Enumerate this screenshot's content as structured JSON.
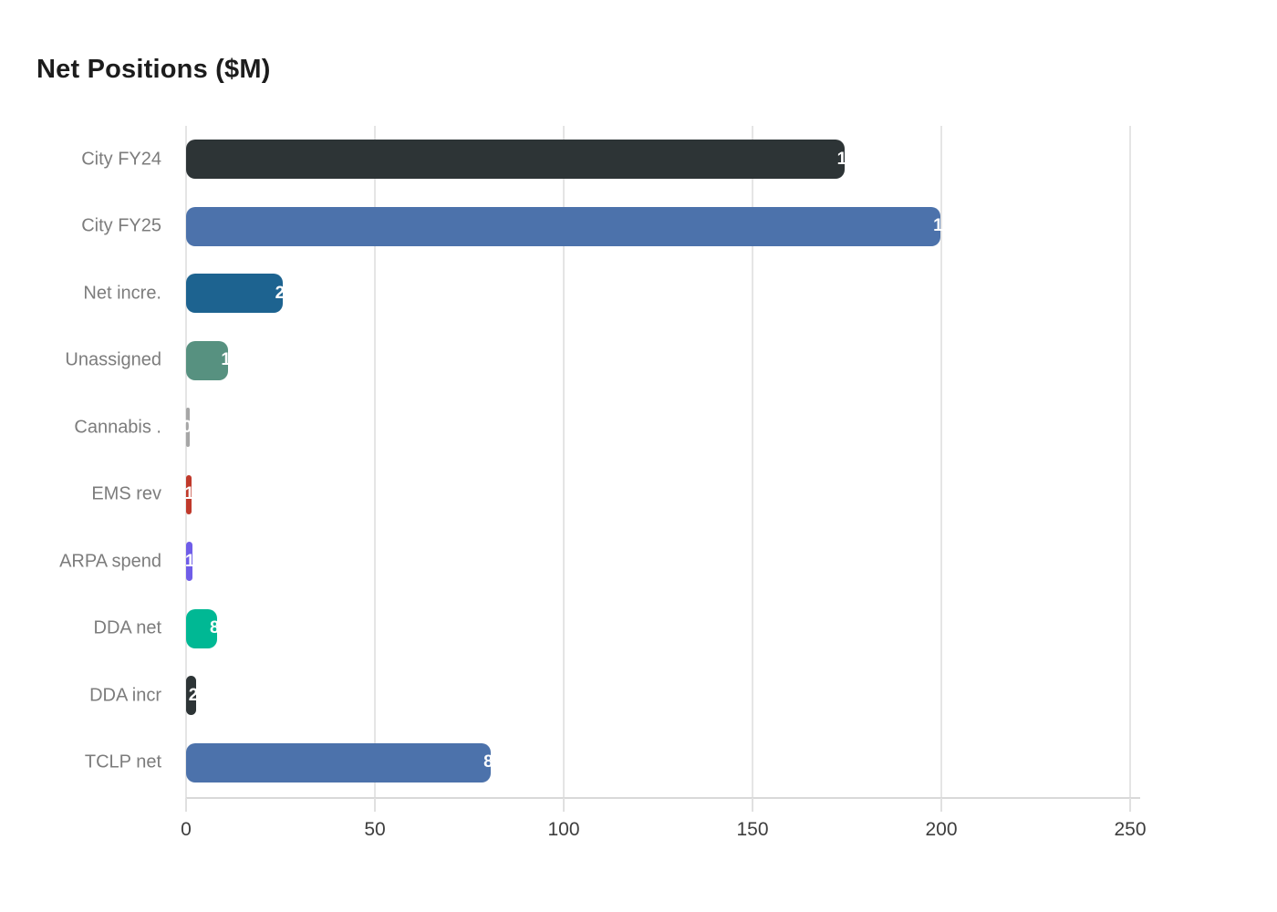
{
  "chart_data": {
    "type": "bar",
    "orientation": "horizontal",
    "title": "Net Positions ($M)",
    "categories": [
      "City FY24",
      "City FY25",
      "Net incre.",
      "Unassigned",
      "Cannabis .",
      "EMS rev",
      "ARPA spend",
      "DDA net",
      "DDA incr",
      "TCLP net"
    ],
    "values": [
      174.3,
      199.8,
      25.5,
      11.2,
      0.9,
      1.5,
      1.7,
      8.2,
      2.6,
      80.7
    ],
    "bar_colors": [
      "#2d3436",
      "#4c72ab",
      "#1d6390",
      "#579180",
      "#a6a6a6",
      "#c0392b",
      "#6f5de8",
      "#00b894",
      "#2d3436",
      "#4c72ab"
    ],
    "xlabel": "",
    "ylabel": "",
    "xlim": [
      0,
      250
    ],
    "x_ticks": [
      0,
      50,
      100,
      150,
      200,
      250
    ],
    "grid": "vertical-only",
    "legend_position": "none",
    "value_label_style": "white text clipped at bar right edge"
  },
  "style": {
    "background": "#ffffff",
    "title_color": "#1c1c1c",
    "grid_color": "#e5e5e5",
    "axis_line_color": "#d8d8d8",
    "tick_label_color": "#3d3d3d",
    "category_label_color": "#7c7c7c",
    "value_label_color": "#ffffff"
  }
}
